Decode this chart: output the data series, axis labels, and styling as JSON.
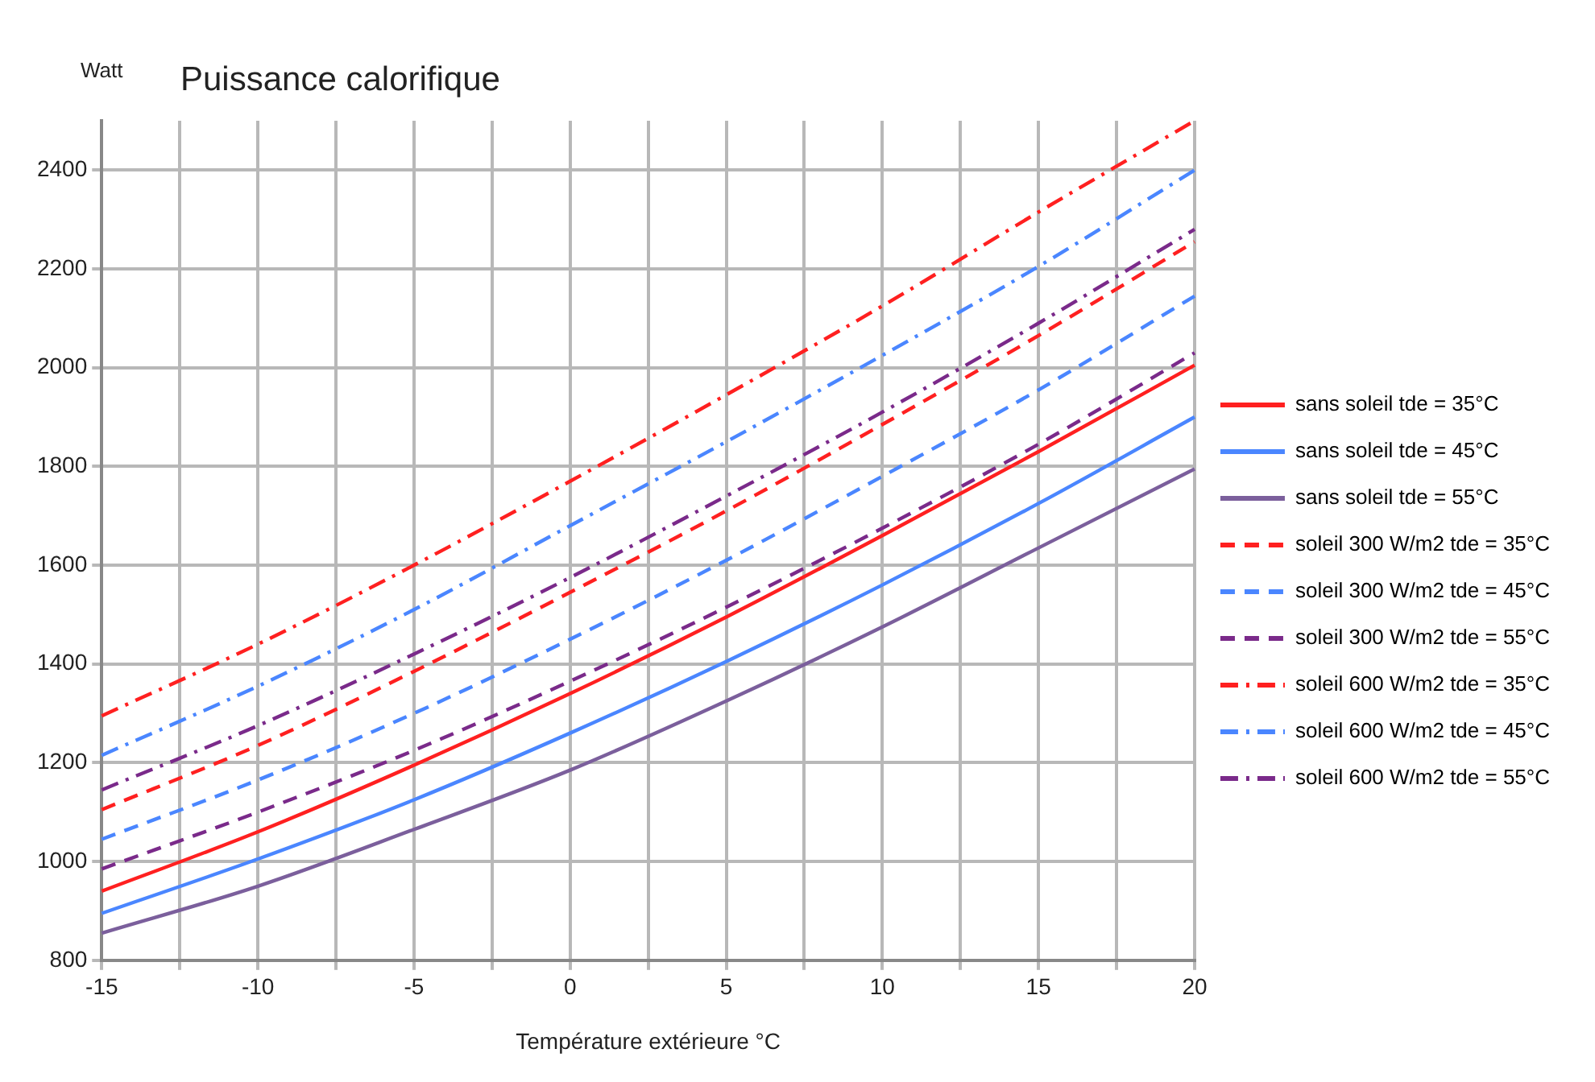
{
  "chart_data": {
    "type": "line",
    "title": "Puissance calorifique",
    "ylabel": "Watt",
    "xlabel": "Température extérieure °C",
    "x": [
      -15,
      -10,
      -5,
      0,
      5,
      10,
      15,
      20
    ],
    "xlim": [
      -15,
      20
    ],
    "xticks": [
      -15,
      {
        "value": -12.5,
        "label": null
      },
      -10,
      {
        "value": -7.5,
        "label": null
      },
      -5,
      {
        "value": -2.5,
        "label": null
      },
      0,
      {
        "value": 2.5,
        "label": null
      },
      5,
      {
        "value": 7.5,
        "label": null
      },
      10,
      {
        "value": 12.5,
        "label": null
      },
      15,
      {
        "value": 17.5,
        "label": null
      },
      20
    ],
    "ylim": [
      800,
      2500
    ],
    "yticks": [
      800,
      1000,
      1200,
      1400,
      1600,
      1800,
      2000,
      2200,
      2400
    ],
    "grid": true,
    "legend": "right",
    "marker": "none",
    "series": [
      {
        "name": "sans soleil tde = 35°C",
        "color": "#ff2020",
        "line_style": "solid",
        "values": [
          940,
          1060,
          1195,
          1340,
          1495,
          1660,
          1830,
          2005
        ]
      },
      {
        "name": "sans soleil tde = 45°C",
        "color": "#4a86ff",
        "line_style": "solid",
        "values": [
          895,
          1005,
          1125,
          1260,
          1405,
          1560,
          1725,
          1900
        ]
      },
      {
        "name": "sans soleil tde = 55°C",
        "color": "#7b5f9c",
        "line_style": "solid",
        "values": [
          855,
          950,
          1065,
          1185,
          1325,
          1475,
          1635,
          1795
        ]
      },
      {
        "name": "soleil 300 W/m2 tde = 35°C",
        "color": "#ff2020",
        "line_style": "dashed",
        "values": [
          1105,
          1235,
          1385,
          1545,
          1710,
          1885,
          2065,
          2255
        ]
      },
      {
        "name": "soleil 300 W/m2 tde = 45°C",
        "color": "#4a86ff",
        "line_style": "dashed",
        "values": [
          1045,
          1165,
          1300,
          1450,
          1610,
          1780,
          1955,
          2145
        ]
      },
      {
        "name": "soleil 300 W/m2 tde = 55°C",
        "color": "#7a2a8a",
        "line_style": "dashed",
        "values": [
          985,
          1100,
          1225,
          1365,
          1515,
          1675,
          1845,
          2030
        ]
      },
      {
        "name": "soleil 600 W/m2 tde = 35°C",
        "color": "#ff2020",
        "line_style": "dashdot",
        "values": [
          1295,
          1440,
          1600,
          1770,
          1945,
          2125,
          2315,
          2500
        ]
      },
      {
        "name": "soleil 600 W/m2 tde = 45°C",
        "color": "#4a86ff",
        "line_style": "dashdot",
        "values": [
          1215,
          1355,
          1510,
          1680,
          1850,
          2025,
          2205,
          2400
        ]
      },
      {
        "name": "soleil 600 W/m2 tde = 55°C",
        "color": "#7a2a8a",
        "line_style": "dashdot",
        "values": [
          1145,
          1275,
          1420,
          1575,
          1740,
          1910,
          2090,
          2280
        ]
      }
    ]
  }
}
